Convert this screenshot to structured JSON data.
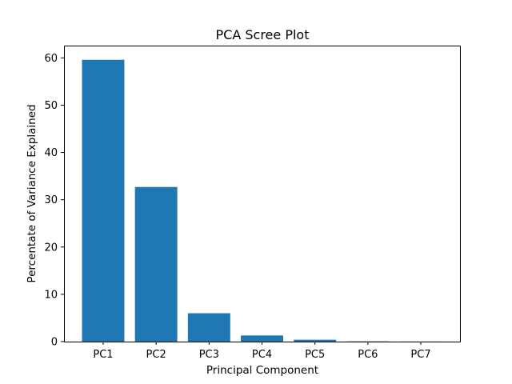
{
  "chart_data": {
    "type": "bar",
    "title": "PCA Scree Plot",
    "xlabel": "Principal Component",
    "ylabel": "Percentate of Variance Explained",
    "categories": [
      "PC1",
      "PC2",
      "PC3",
      "PC4",
      "PC5",
      "PC6",
      "PC7"
    ],
    "values": [
      59.6,
      32.7,
      6.0,
      1.3,
      0.4,
      0.05,
      0.02
    ],
    "ylim": [
      0,
      62.6
    ],
    "yticks": [
      0,
      10,
      20,
      30,
      40,
      50,
      60
    ],
    "bar_color": "#1f77b4",
    "grid": false
  }
}
